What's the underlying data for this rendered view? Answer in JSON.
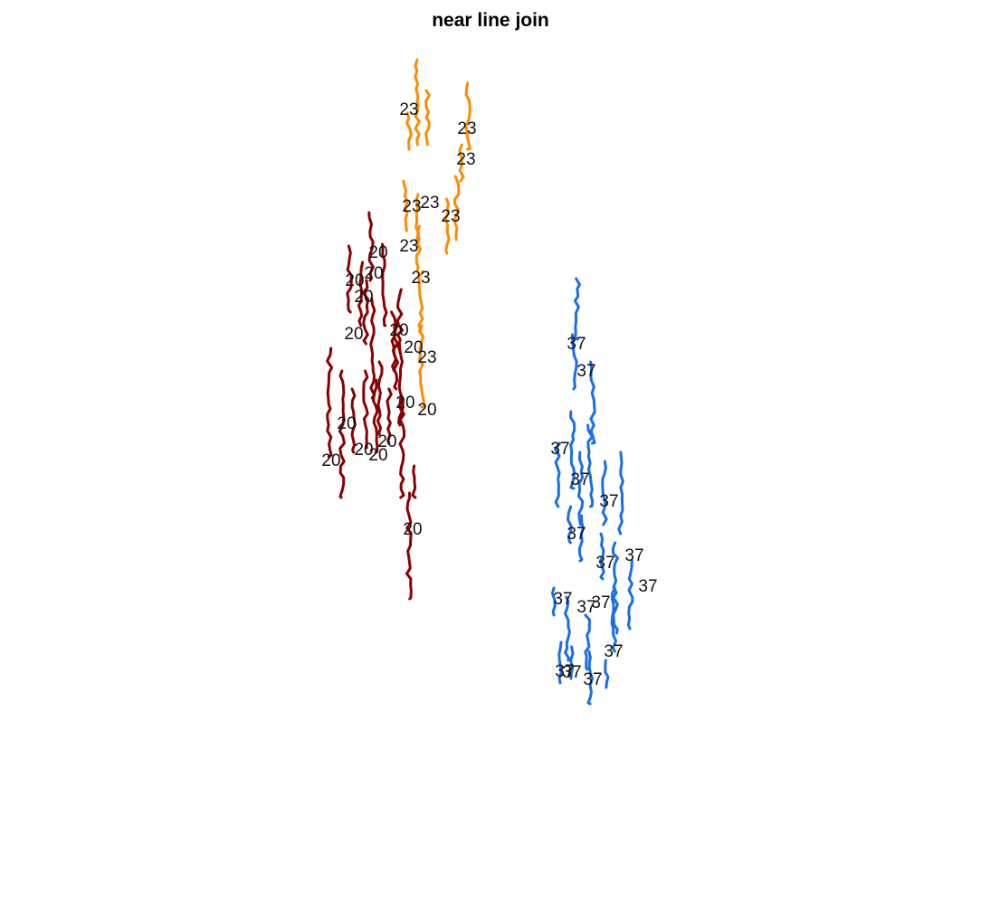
{
  "title": "near line join",
  "colors": {
    "group_23": "#ff8c00",
    "group_20": "#8b0000",
    "group_37": "#1a6fe6"
  },
  "groups": [
    {
      "id": "23",
      "color": "#ff8c00",
      "label": "23",
      "label_count": 9
    },
    {
      "id": "20",
      "color": "#8b0000",
      "label": "20",
      "label_count": 15
    },
    {
      "id": "37",
      "color": "#1a6fe6",
      "label": "37",
      "label_count": 16
    }
  ]
}
